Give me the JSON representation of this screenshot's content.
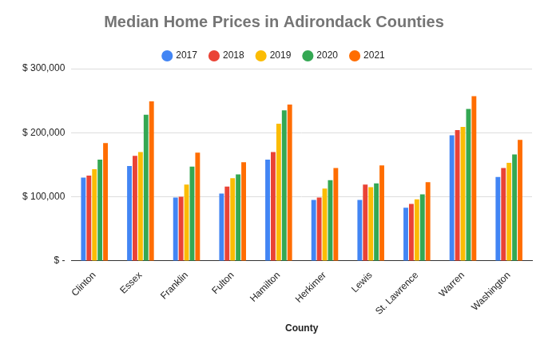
{
  "chart_data": {
    "type": "bar",
    "title": "Median Home Prices in Adirondack Counties",
    "x_label": "County",
    "categories": [
      "Clinton",
      "Essex",
      "Franklin",
      "Fulton",
      "Hamilton",
      "Herkimer",
      "Lewis",
      "St. Lawrence",
      "Warren",
      "Washington"
    ],
    "series": [
      {
        "name": "2017",
        "color": "#4285f4",
        "values": [
          130000,
          148000,
          99000,
          105000,
          158000,
          95000,
          95000,
          83000,
          196000,
          131000
        ]
      },
      {
        "name": "2018",
        "color": "#ea4335",
        "values": [
          133000,
          164000,
          100000,
          116000,
          170000,
          99000,
          119000,
          89000,
          204000,
          145000
        ]
      },
      {
        "name": "2019",
        "color": "#fbbc04",
        "values": [
          143000,
          170000,
          119000,
          129000,
          214000,
          113000,
          115000,
          96000,
          209000,
          153000
        ]
      },
      {
        "name": "2020",
        "color": "#34a853",
        "values": [
          158000,
          228000,
          147000,
          135000,
          235000,
          126000,
          121000,
          104000,
          237000,
          166000
        ]
      },
      {
        "name": "2021",
        "color": "#ff6d01",
        "values": [
          184000,
          249000,
          169000,
          154000,
          244000,
          145000,
          149000,
          123000,
          257000,
          189000
        ]
      }
    ],
    "ylim": [
      0,
      300000
    ],
    "yticks": [
      {
        "value": 0,
        "label": "$ -"
      },
      {
        "value": 100000,
        "label": "$ 100,000"
      },
      {
        "value": 200000,
        "label": "$ 200,000"
      },
      {
        "value": 300000,
        "label": "$ 300,000"
      }
    ],
    "grid": true,
    "legend": "top"
  }
}
